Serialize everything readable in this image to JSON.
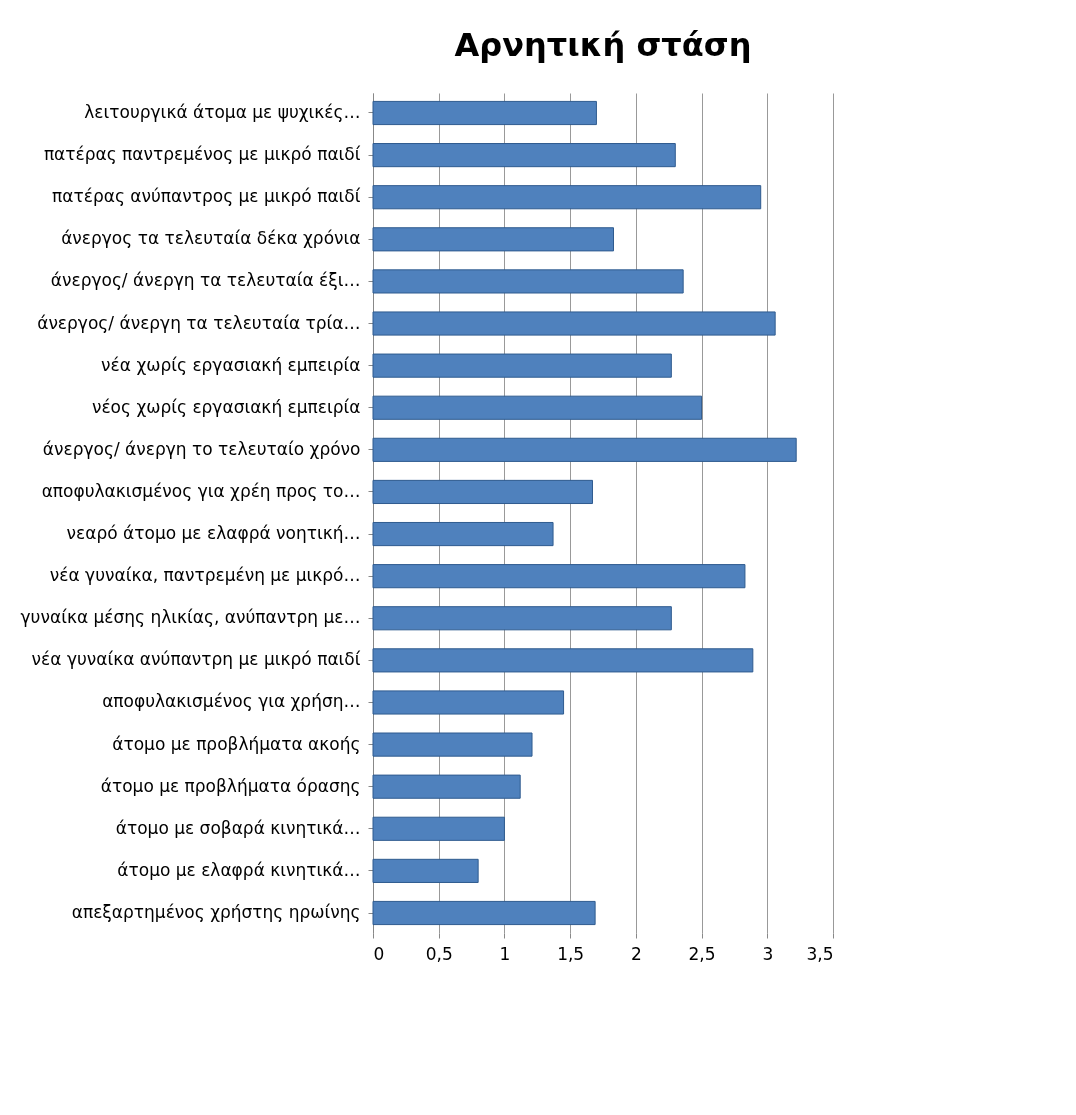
{
  "chart_data": {
    "type": "bar",
    "orientation": "horizontal",
    "title": "Αρνητική στάση",
    "categories": [
      "λειτουργικά άτομα με ψυχικές…",
      "πατέρας παντρεμένος με μικρό παιδί",
      "πατέρας ανύπαντρος με μικρό παιδί",
      "άνεργος τα τελευταία δέκα χρόνια",
      "άνεργος/ άνεργη τα τελευταία έξι…",
      "άνεργος/ άνεργη τα τελευταία τρία…",
      "νέα χωρίς εργασιακή εμπειρία",
      "νέος χωρίς εργασιακή εμπειρία",
      "άνεργος/ άνεργη το τελευταίο χρόνο",
      "αποφυλακισμένος για χρέη προς το…",
      "νεαρό άτομο με ελαφρά νοητική…",
      "νέα γυναίκα, παντρεμένη με μικρό…",
      "γυναίκα μέσης ηλικίας, ανύπαντρη με…",
      "νέα γυναίκα ανύπαντρη με μικρό παιδί",
      "αποφυλακισμένος για χρήση…",
      "άτομο με προβλήματα ακοής",
      "άτομο με προβλήματα όρασης",
      "άτομο με σοβαρά κινητικά…",
      "άτομο με ελαφρά κινητικά…",
      "απεξαρτημένος χρήστης ηρωίνης"
    ],
    "values": [
      1.7,
      2.3,
      2.95,
      1.83,
      2.36,
      3.06,
      2.27,
      2.5,
      3.22,
      1.67,
      1.37,
      2.83,
      2.27,
      2.89,
      1.45,
      1.21,
      1.12,
      1.0,
      0.8,
      1.69
    ],
    "color": "#4f81bd",
    "xlim": [
      0,
      3.5
    ],
    "xticks": [
      0,
      {
        "value": 0.5,
        "label": "0,5"
      },
      1,
      {
        "value": 1.5,
        "label": "1,5"
      },
      2,
      {
        "value": 2.5,
        "label": "2,5"
      },
      3,
      {
        "value": 3.5,
        "label": "3,5"
      }
    ],
    "grid": "x"
  }
}
